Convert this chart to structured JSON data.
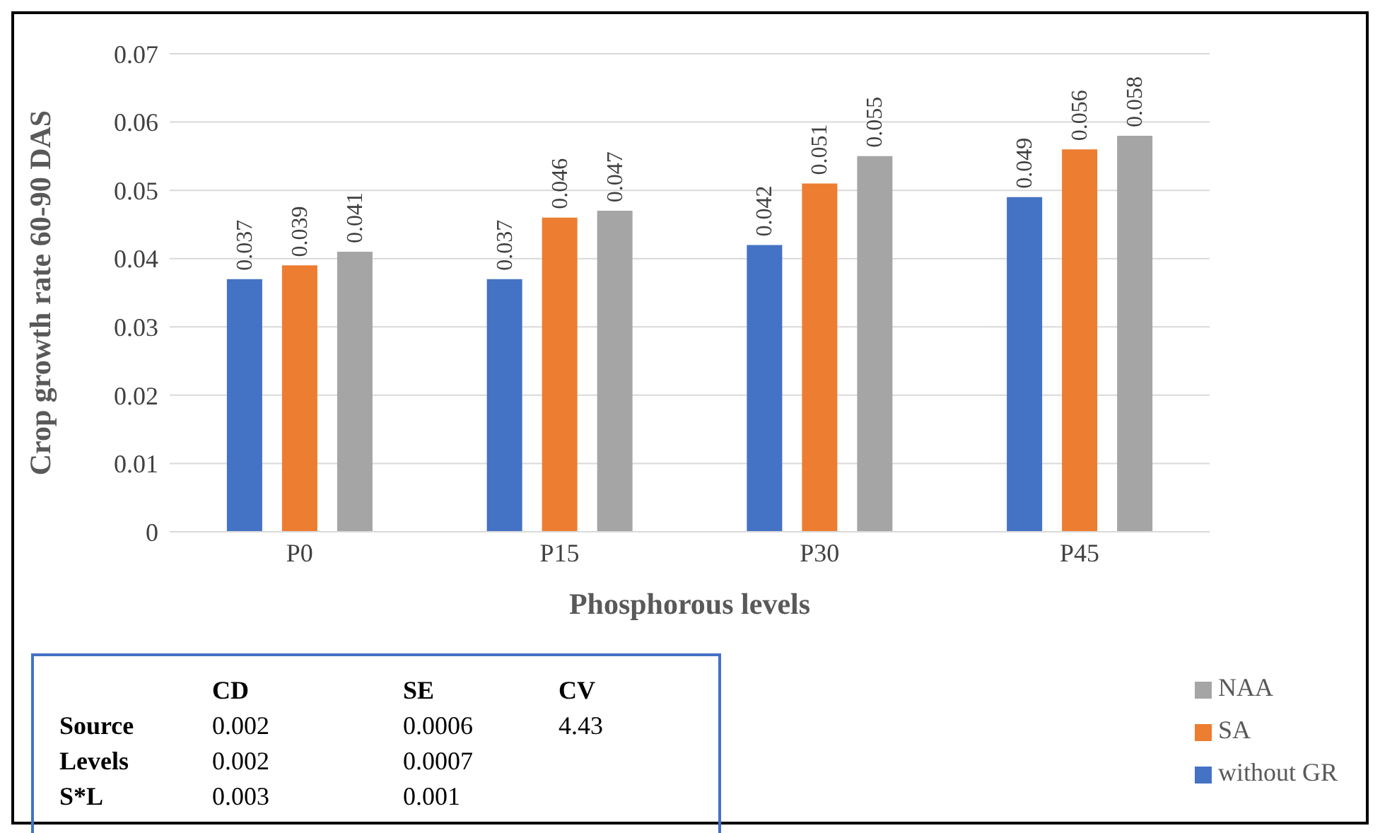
{
  "chart_data": {
    "type": "bar",
    "xlabel": "Phosphorous levels",
    "ylabel": "Crop growth rate 60-90 DAS",
    "categories": [
      "P0",
      "P15",
      "P30",
      "P45"
    ],
    "series": [
      {
        "name": "without GR",
        "color": "#4472c4",
        "values": [
          0.037,
          0.037,
          0.042,
          0.049
        ]
      },
      {
        "name": "SA",
        "color": "#ed7d31",
        "values": [
          0.039,
          0.046,
          0.051,
          0.056
        ]
      },
      {
        "name": "NAA",
        "color": "#a5a5a5",
        "values": [
          0.041,
          0.047,
          0.055,
          0.058
        ]
      }
    ],
    "ylim": [
      0,
      0.07
    ],
    "yticks": [
      0,
      0.01,
      0.02,
      0.03,
      0.04,
      0.05,
      0.06,
      0.07
    ],
    "grid": "y",
    "legend": "bottom right",
    "data_labels": true,
    "annotations": [
      "CD",
      "SE",
      "CV",
      "Source",
      "0.002",
      "0.0006",
      "4.43",
      "Levels",
      "0.002",
      "0.0007",
      "S*L",
      "0.003",
      "0.001"
    ]
  }
}
